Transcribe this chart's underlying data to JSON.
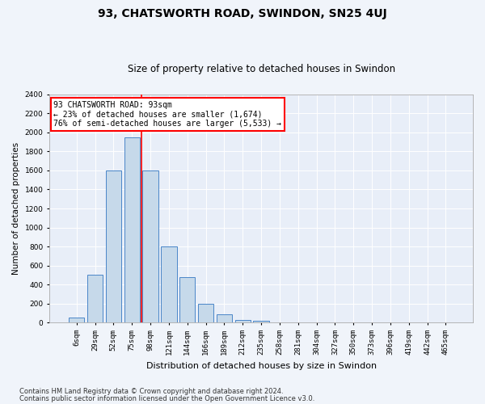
{
  "title": "93, CHATSWORTH ROAD, SWINDON, SN25 4UJ",
  "subtitle": "Size of property relative to detached houses in Swindon",
  "xlabel": "Distribution of detached houses by size in Swindon",
  "ylabel": "Number of detached properties",
  "categories": [
    "6sqm",
    "29sqm",
    "52sqm",
    "75sqm",
    "98sqm",
    "121sqm",
    "144sqm",
    "166sqm",
    "189sqm",
    "212sqm",
    "235sqm",
    "258sqm",
    "281sqm",
    "304sqm",
    "327sqm",
    "350sqm",
    "373sqm",
    "396sqm",
    "419sqm",
    "442sqm",
    "465sqm"
  ],
  "values": [
    50,
    500,
    1600,
    1950,
    1600,
    800,
    475,
    200,
    90,
    30,
    20,
    5,
    3,
    2,
    1,
    1,
    0,
    0,
    0,
    0,
    0
  ],
  "bar_color": "#c6d9ea",
  "bar_edge_color": "#4a86c8",
  "red_line_x": 3.5,
  "ylim": [
    0,
    2400
  ],
  "yticks": [
    0,
    200,
    400,
    600,
    800,
    1000,
    1200,
    1400,
    1600,
    1800,
    2000,
    2200,
    2400
  ],
  "annotation_text": "93 CHATSWORTH ROAD: 93sqm\n← 23% of detached houses are smaller (1,674)\n76% of semi-detached houses are larger (5,533) →",
  "annotation_box_color": "white",
  "annotation_box_edge": "red",
  "footer1": "Contains HM Land Registry data © Crown copyright and database right 2024.",
  "footer2": "Contains public sector information licensed under the Open Government Licence v3.0.",
  "background_color": "#f0f4fa",
  "plot_bg_color": "#e8eef8",
  "title_fontsize": 10,
  "subtitle_fontsize": 8.5,
  "xlabel_fontsize": 8,
  "ylabel_fontsize": 7.5,
  "tick_fontsize": 6.5,
  "annotation_fontsize": 7,
  "footer_fontsize": 6
}
